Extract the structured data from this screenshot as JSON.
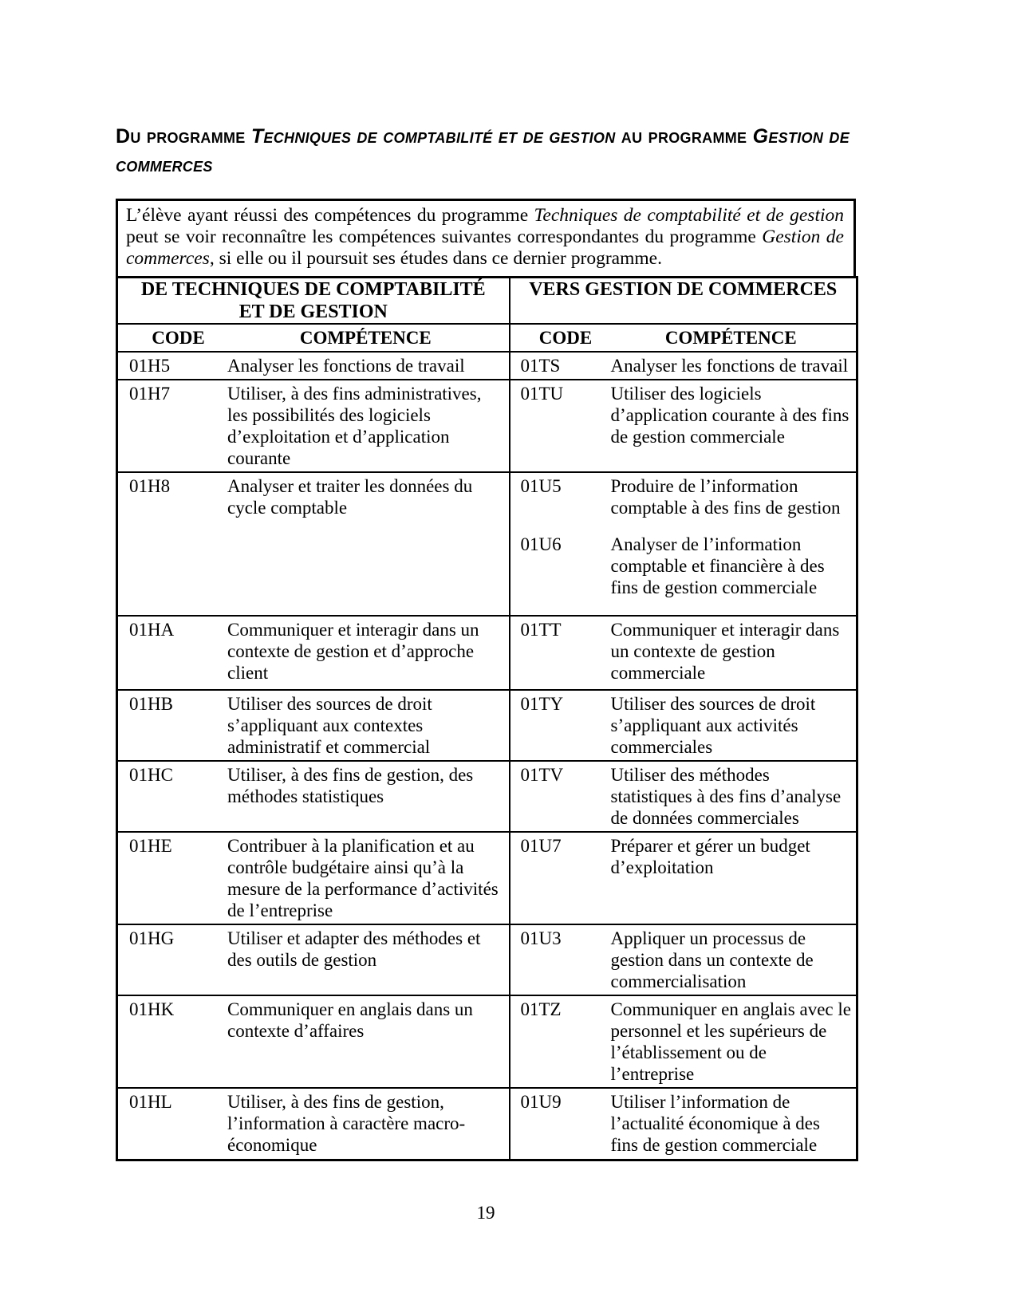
{
  "document": {
    "heading": {
      "parts": [
        {
          "text": "Du programme "
        },
        {
          "text": "Techniques de comptabilité et de gestion"
        },
        {
          "text": " au programme "
        },
        {
          "text": "Gestion de commerces"
        }
      ]
    },
    "intro": {
      "parts": [
        {
          "text": "L’élève ayant réussi des compétences du programme "
        },
        {
          "text": "Techniques de comptabilité et de gestion"
        },
        {
          "text": " peut se voir reconnaître les compétences suivantes correspondantes du programme "
        },
        {
          "text": "Gestion de commerces"
        },
        {
          "text": ", si elle ou il poursuit ses études dans ce dernier programme."
        }
      ]
    },
    "table": {
      "left_header_line1": "DE TECHNIQUES DE COMPTABILITÉ",
      "left_header_line2": "ET DE GESTION",
      "right_header": "VERS GESTION DE COMMERCES",
      "code_header": "CODE",
      "competence_header": "COMPÉTENCE",
      "rows": [
        {
          "left": [
            {
              "code": "01H5",
              "text": "Analyser les fonctions de travail"
            }
          ],
          "right": [
            {
              "code": "01TS",
              "text": "Analyser les fonctions de travail"
            }
          ]
        },
        {
          "left": [
            {
              "code": "01H7",
              "text": "Utiliser, à des fins administratives, les possibilités des logiciels d’exploitation et d’application courante"
            }
          ],
          "right": [
            {
              "code": "01TU",
              "text": "Utiliser des logiciels d’application courante à des fins de gestion commerciale"
            }
          ]
        },
        {
          "left": [
            {
              "code": "01H8",
              "text": "Analyser et traiter les données du cycle comptable"
            }
          ],
          "right": [
            {
              "code": "01U5",
              "text": "Produire de l’information comptable à des fins de gestion"
            },
            {
              "code": "01U6",
              "text": "Analyser de l’information comptable et financière à des fins de gestion commerciale"
            }
          ]
        },
        {
          "left": [
            {
              "code": "01HA",
              "text": "Communiquer et interagir dans un contexte de gestion et d’approche client"
            }
          ],
          "right": [
            {
              "code": "01TT",
              "text": "Communiquer et interagir dans un contexte de gestion commerciale"
            }
          ]
        },
        {
          "left": [
            {
              "code": "01HB",
              "text": "Utiliser des sources de droit s’appliquant aux contextes administratif et commercial"
            }
          ],
          "right": [
            {
              "code": "01TY",
              "text": "Utiliser des sources de droit s’appliquant aux activités commerciales"
            }
          ]
        },
        {
          "left": [
            {
              "code": "01HC",
              "text": "Utiliser, à des fins de gestion, des méthodes statistiques"
            }
          ],
          "right": [
            {
              "code": "01TV",
              "text": "Utiliser des méthodes statistiques à des fins d’analyse de données commerciales"
            }
          ]
        },
        {
          "left": [
            {
              "code": "01HE",
              "text": "Contribuer à la planification et au contrôle budgétaire ainsi qu’à la mesure de la performance d’activités de l’entreprise"
            }
          ],
          "right": [
            {
              "code": "01U7",
              "text": "Préparer et gérer un budget d’exploitation"
            }
          ]
        },
        {
          "left": [
            {
              "code": "01HG",
              "text": "Utiliser et adapter des méthodes et des outils de gestion"
            }
          ],
          "right": [
            {
              "code": "01U3",
              "text": "Appliquer un processus de gestion dans un contexte de commercialisation"
            }
          ]
        },
        {
          "left": [
            {
              "code": "01HK",
              "text": "Communiquer en anglais dans un contexte d’affaires"
            }
          ],
          "right": [
            {
              "code": "01TZ",
              "text": "Communiquer en anglais avec le personnel et les supérieurs de l’établissement ou de l’entreprise"
            }
          ]
        },
        {
          "left": [
            {
              "code": "01HL",
              "text": "Utiliser, à des fins de gestion, l’information à caractère macro-économique"
            }
          ],
          "right": [
            {
              "code": "01U9",
              "text": "Utiliser l’information de l’actualité économique à des fins de gestion commerciale"
            }
          ]
        }
      ]
    },
    "footer": {
      "page_number": "19"
    }
  }
}
